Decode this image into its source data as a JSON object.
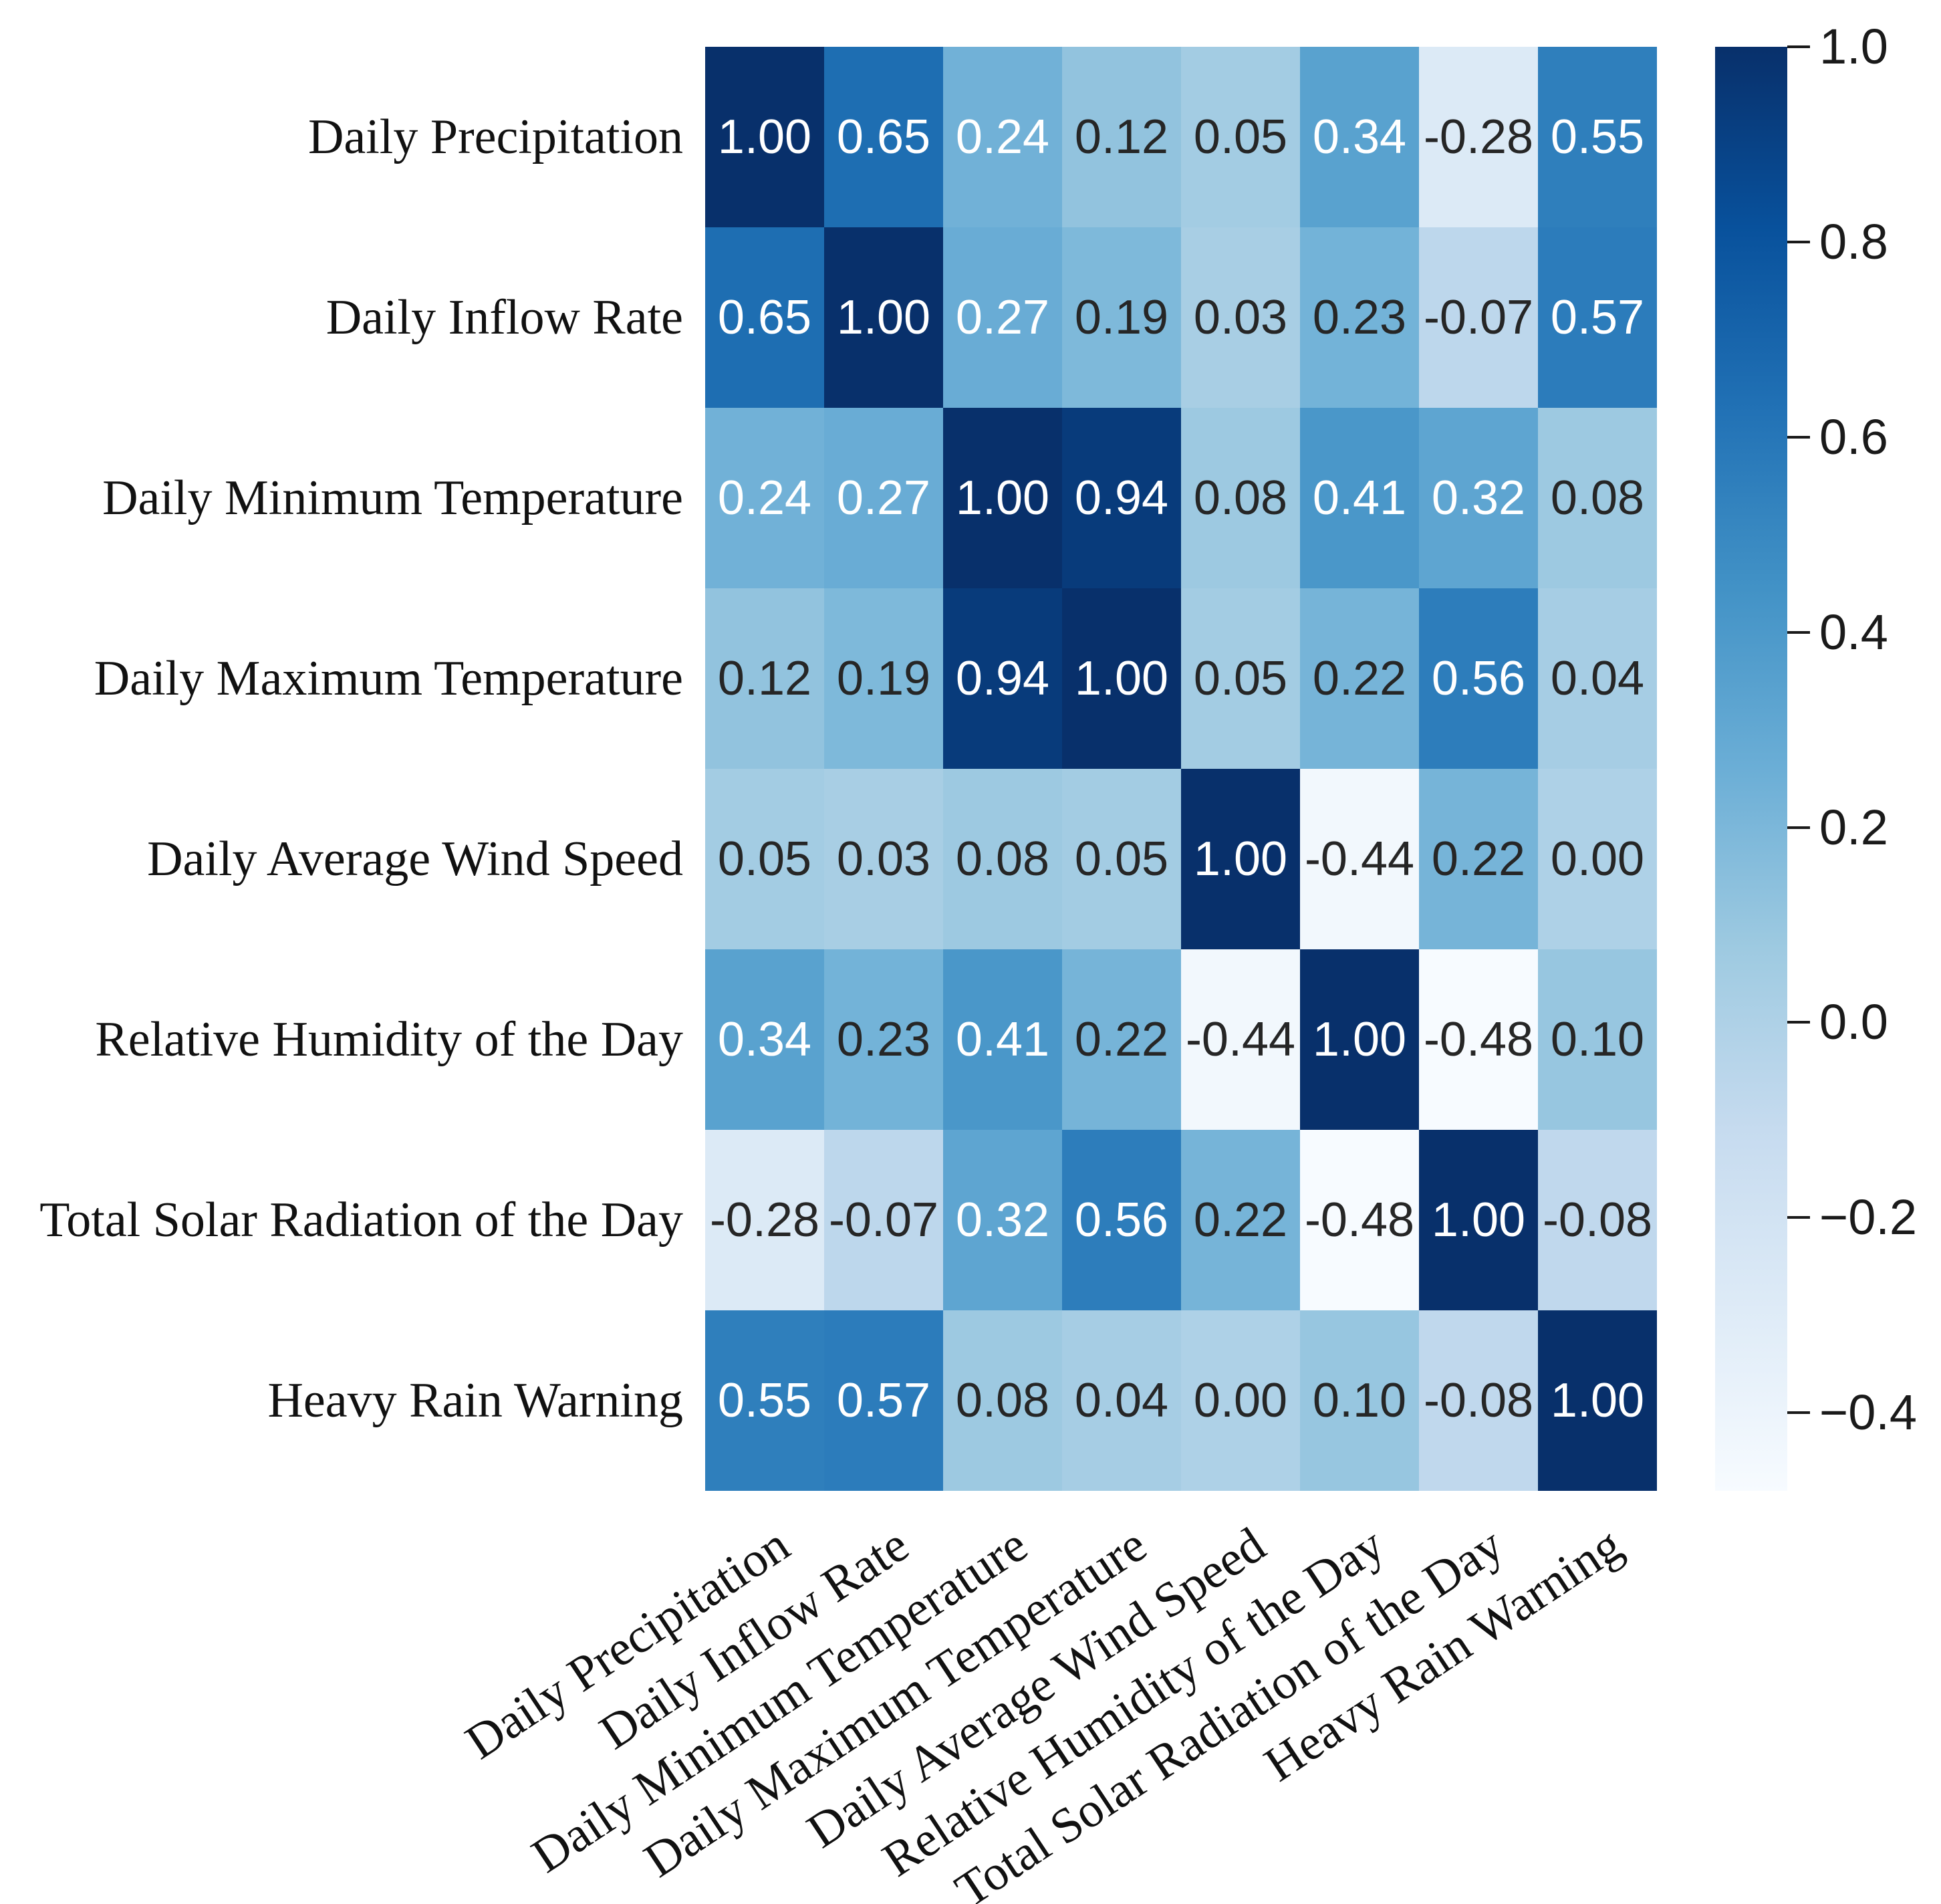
{
  "figure": {
    "kind": "correlation-heatmap",
    "background": "#ffffff"
  },
  "chart_data": {
    "type": "heatmap",
    "title": "",
    "xlabel": "",
    "ylabel": "",
    "variables": [
      "Daily Precipitation",
      "Daily Inflow Rate",
      "Daily Minimum Temperature",
      "Daily Maximum Temperature",
      "Daily Average Wind Speed",
      "Relative Humidity of the Day",
      "Total Solar Radiation of the Day",
      "Heavy Rain Warning"
    ],
    "matrix": [
      [
        1.0,
        0.65,
        0.24,
        0.12,
        0.05,
        0.34,
        -0.28,
        0.55
      ],
      [
        0.65,
        1.0,
        0.27,
        0.19,
        0.03,
        0.23,
        -0.07,
        0.57
      ],
      [
        0.24,
        0.27,
        1.0,
        0.94,
        0.08,
        0.41,
        0.32,
        0.08
      ],
      [
        0.12,
        0.19,
        0.94,
        1.0,
        0.05,
        0.22,
        0.56,
        0.04
      ],
      [
        0.05,
        0.03,
        0.08,
        0.05,
        1.0,
        -0.44,
        0.22,
        0.0
      ],
      [
        0.34,
        0.23,
        0.41,
        0.22,
        -0.44,
        1.0,
        -0.48,
        0.1
      ],
      [
        -0.28,
        -0.07,
        0.32,
        0.56,
        0.22,
        -0.48,
        1.0,
        -0.08
      ],
      [
        0.55,
        0.57,
        0.08,
        0.04,
        0.0,
        0.1,
        -0.08,
        1.0
      ]
    ],
    "annotation_decimals": 2,
    "grid": false,
    "legend_position": "right",
    "vmin": -0.48,
    "vmax": 1.0,
    "colormap_name": "Blues",
    "colormap": [
      {
        "pos": 0.0,
        "color": "#f7fbff"
      },
      {
        "pos": 0.125,
        "color": "#deebf7"
      },
      {
        "pos": 0.25,
        "color": "#c6dbef"
      },
      {
        "pos": 0.375,
        "color": "#9ecae1"
      },
      {
        "pos": 0.5,
        "color": "#6baed6"
      },
      {
        "pos": 0.625,
        "color": "#4292c6"
      },
      {
        "pos": 0.75,
        "color": "#2171b5"
      },
      {
        "pos": 0.875,
        "color": "#08519c"
      },
      {
        "pos": 1.0,
        "color": "#08306b"
      }
    ],
    "annotation_text_colors": {
      "light": "#ffffff",
      "dark": "#262626"
    },
    "colorbar": {
      "ticks": [
        {
          "value": 1.0,
          "label": "1.0"
        },
        {
          "value": 0.8,
          "label": "0.8"
        },
        {
          "value": 0.6,
          "label": "0.6"
        },
        {
          "value": 0.4,
          "label": "0.4"
        },
        {
          "value": 0.2,
          "label": "0.2"
        },
        {
          "value": 0.0,
          "label": "0.0"
        },
        {
          "value": -0.2,
          "label": "−0.2"
        },
        {
          "value": -0.4,
          "label": "−0.4"
        }
      ]
    }
  }
}
